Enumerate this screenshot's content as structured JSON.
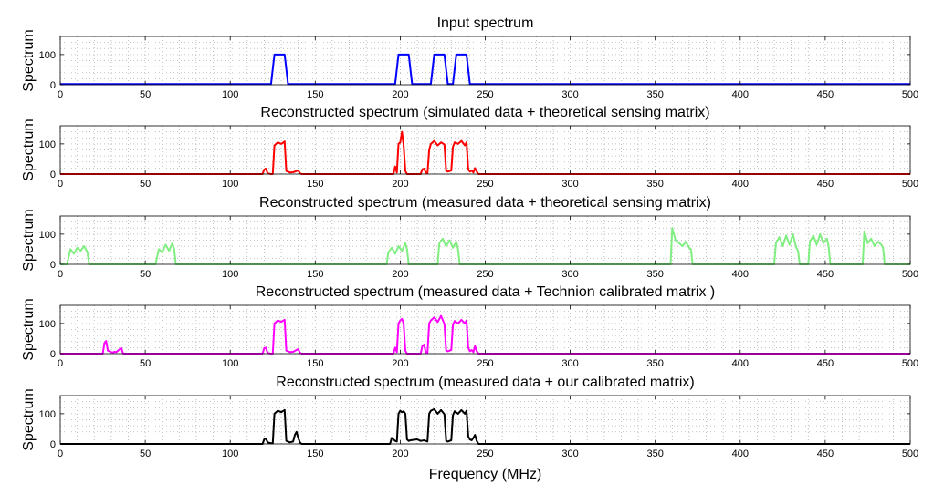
{
  "chart_data": [
    {
      "type": "line",
      "title": "Input spectrum",
      "xlabel": "",
      "ylabel": "Spectrum",
      "xlim": [
        0,
        500
      ],
      "ylim": [
        0,
        160
      ],
      "xticks": [
        0,
        50,
        100,
        150,
        200,
        250,
        300,
        350,
        400,
        450,
        500
      ],
      "yticks": [
        0,
        100
      ],
      "color": "#0000ff",
      "grid": true,
      "series": [
        {
          "name": "Input spectrum",
          "x": [
            0,
            124,
            126,
            132,
            134,
            197,
            199,
            205,
            207,
            218,
            220,
            226,
            228,
            231,
            233,
            239,
            241,
            500
          ],
          "y": [
            2,
            2,
            100,
            100,
            2,
            2,
            100,
            100,
            2,
            2,
            100,
            100,
            2,
            2,
            100,
            100,
            2,
            2
          ]
        }
      ]
    },
    {
      "type": "line",
      "title": "Reconstructed spectrum (simulated data + theoretical sensing matrix)",
      "xlabel": "",
      "ylabel": "Spectrum",
      "xlim": [
        0,
        500
      ],
      "ylim": [
        0,
        160
      ],
      "xticks": [
        0,
        50,
        100,
        150,
        200,
        250,
        300,
        350,
        400,
        450,
        500
      ],
      "yticks": [
        0,
        100
      ],
      "color": "#ff0000",
      "grid": true,
      "series": [
        {
          "name": "Reconstructed",
          "x": [
            0,
            119,
            120,
            121,
            122,
            124,
            125,
            126,
            128,
            130,
            132,
            133,
            134,
            135,
            137,
            139,
            140,
            141,
            142,
            196,
            197,
            198,
            199,
            200,
            201,
            202,
            203,
            204,
            212,
            213,
            214,
            215,
            216,
            217,
            218,
            220,
            222,
            224,
            226,
            227,
            228,
            230,
            231,
            232,
            234,
            236,
            238,
            239,
            240,
            241,
            242,
            243,
            244,
            245,
            246,
            500
          ],
          "y": [
            0,
            0,
            15,
            18,
            2,
            0,
            0,
            95,
            105,
            100,
            108,
            10,
            8,
            5,
            6,
            10,
            12,
            3,
            0,
            0,
            25,
            5,
            100,
            105,
            140,
            95,
            10,
            0,
            0,
            15,
            18,
            5,
            2,
            80,
            100,
            110,
            95,
            105,
            98,
            10,
            8,
            12,
            90,
            105,
            100,
            110,
            95,
            105,
            15,
            8,
            12,
            5,
            20,
            8,
            0,
            0
          ]
        }
      ]
    },
    {
      "type": "line",
      "title": "Reconstructed spectrum (measured data + theoretical sensing matrix)",
      "xlabel": "",
      "ylabel": "Spectrum",
      "xlim": [
        0,
        500
      ],
      "ylim": [
        0,
        160
      ],
      "xticks": [
        0,
        50,
        100,
        150,
        200,
        250,
        300,
        350,
        400,
        450,
        500
      ],
      "yticks": [
        0,
        100
      ],
      "color": "#80ee80",
      "grid": true,
      "series": [
        {
          "name": "Reconstructed",
          "x": [
            0,
            4,
            6,
            8,
            10,
            12,
            14,
            15,
            16,
            17,
            56,
            58,
            60,
            62,
            64,
            66,
            67,
            68,
            192,
            193,
            195,
            197,
            199,
            201,
            203,
            204,
            205,
            222,
            223,
            225,
            227,
            229,
            231,
            233,
            234,
            235,
            359,
            360,
            362,
            364,
            366,
            368,
            370,
            371,
            372,
            420,
            421,
            423,
            425,
            427,
            429,
            431,
            433,
            434,
            435,
            440,
            441,
            443,
            445,
            447,
            449,
            451,
            452,
            453,
            472,
            473,
            475,
            477,
            479,
            481,
            483,
            484,
            485,
            500
          ],
          "y": [
            0,
            0,
            50,
            35,
            55,
            45,
            60,
            50,
            40,
            0,
            0,
            50,
            40,
            65,
            45,
            70,
            50,
            0,
            0,
            40,
            55,
            35,
            60,
            45,
            70,
            50,
            0,
            0,
            70,
            85,
            60,
            80,
            55,
            75,
            50,
            0,
            0,
            120,
            80,
            70,
            60,
            75,
            55,
            50,
            0,
            0,
            70,
            90,
            60,
            95,
            65,
            100,
            55,
            45,
            0,
            0,
            75,
            95,
            65,
            100,
            70,
            85,
            60,
            0,
            0,
            110,
            70,
            85,
            60,
            75,
            65,
            55,
            0,
            0
          ]
        }
      ]
    },
    {
      "type": "line",
      "title": "Reconstructed spectrum (measured data + Technion calibrated matrix )",
      "xlabel": "",
      "ylabel": "Spectrum",
      "xlim": [
        0,
        500
      ],
      "ylim": [
        0,
        160
      ],
      "xticks": [
        0,
        50,
        100,
        150,
        200,
        250,
        300,
        350,
        400,
        450,
        500
      ],
      "yticks": [
        0,
        100
      ],
      "color": "#ff00ff",
      "grid": true,
      "series": [
        {
          "name": "Reconstructed",
          "x": [
            0,
            25,
            26,
            27,
            28,
            29,
            30,
            31,
            32,
            33,
            34,
            35,
            36,
            37,
            119,
            120,
            121,
            122,
            124,
            125,
            126,
            128,
            130,
            132,
            133,
            134,
            135,
            137,
            139,
            140,
            141,
            142,
            196,
            197,
            198,
            199,
            200,
            201,
            202,
            203,
            204,
            212,
            213,
            214,
            215,
            216,
            217,
            218,
            220,
            222,
            224,
            226,
            227,
            228,
            230,
            231,
            232,
            234,
            236,
            238,
            239,
            240,
            241,
            242,
            243,
            244,
            245,
            246,
            500
          ],
          "y": [
            0,
            0,
            35,
            42,
            10,
            8,
            5,
            4,
            6,
            5,
            10,
            15,
            18,
            0,
            0,
            18,
            20,
            2,
            0,
            0,
            100,
            110,
            105,
            112,
            10,
            8,
            5,
            6,
            12,
            15,
            3,
            0,
            0,
            20,
            5,
            100,
            110,
            115,
            100,
            10,
            0,
            0,
            25,
            30,
            5,
            2,
            100,
            110,
            120,
            105,
            125,
            98,
            10,
            8,
            12,
            95,
            108,
            100,
            112,
            100,
            110,
            20,
            8,
            12,
            5,
            25,
            8,
            0,
            0
          ]
        }
      ]
    },
    {
      "type": "line",
      "title": "Reconstructed spectrum (measured data + our calibrated matrix)",
      "xlabel": "Frequency (MHz)",
      "ylabel": "Spectrum",
      "xlim": [
        0,
        500
      ],
      "ylim": [
        0,
        160
      ],
      "xticks": [
        0,
        50,
        100,
        150,
        200,
        250,
        300,
        350,
        400,
        450,
        500
      ],
      "yticks": [
        0,
        100
      ],
      "color": "#000000",
      "grid": true,
      "series": [
        {
          "name": "Reconstructed",
          "x": [
            0,
            119,
            120,
            121,
            122,
            124,
            125,
            126,
            128,
            130,
            132,
            133,
            134,
            135,
            137,
            138,
            139,
            140,
            141,
            142,
            194,
            195,
            196,
            197,
            198,
            199,
            200,
            201,
            202,
            203,
            204,
            205,
            206,
            210,
            212,
            214,
            216,
            217,
            218,
            220,
            222,
            224,
            226,
            227,
            228,
            230,
            231,
            232,
            234,
            236,
            238,
            239,
            240,
            241,
            242,
            243,
            244,
            245,
            246,
            500
          ],
          "y": [
            0,
            0,
            15,
            18,
            5,
            2,
            2,
            100,
            110,
            105,
            112,
            10,
            8,
            5,
            8,
            30,
            40,
            20,
            5,
            0,
            0,
            20,
            15,
            10,
            8,
            100,
            110,
            105,
            108,
            100,
            15,
            10,
            12,
            15,
            10,
            12,
            8,
            100,
            110,
            115,
            100,
            112,
            98,
            10,
            8,
            12,
            95,
            108,
            100,
            112,
            100,
            110,
            25,
            15,
            12,
            20,
            30,
            10,
            0,
            0
          ]
        }
      ]
    }
  ]
}
